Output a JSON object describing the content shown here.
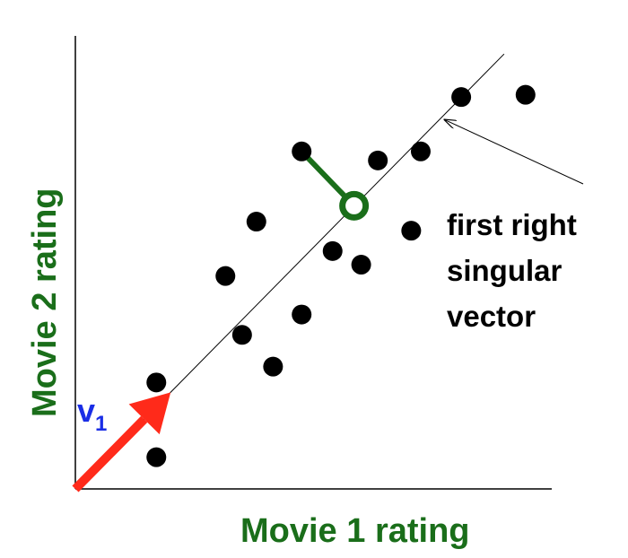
{
  "chart_data": {
    "type": "scatter",
    "title": "",
    "xlabel": "Movie 1 rating",
    "ylabel": "Movie 2 rating",
    "axis_color": "#000000",
    "label_color": "#1a6e1a",
    "point_color": "#000000",
    "grid": false,
    "ticks": false,
    "points": [
      {
        "x": 0.17,
        "y": 0.07
      },
      {
        "x": 0.17,
        "y": 0.235
      },
      {
        "x": 0.35,
        "y": 0.34
      },
      {
        "x": 0.415,
        "y": 0.27
      },
      {
        "x": 0.475,
        "y": 0.385
      },
      {
        "x": 0.315,
        "y": 0.47
      },
      {
        "x": 0.38,
        "y": 0.59
      },
      {
        "x": 0.54,
        "y": 0.525
      },
      {
        "x": 0.6,
        "y": 0.495
      },
      {
        "x": 0.705,
        "y": 0.57
      },
      {
        "x": 0.475,
        "y": 0.745
      },
      {
        "x": 0.635,
        "y": 0.725
      },
      {
        "x": 0.725,
        "y": 0.745
      },
      {
        "x": 0.81,
        "y": 0.865
      },
      {
        "x": 0.945,
        "y": 0.87
      }
    ],
    "fit_line": {
      "from": {
        "x": 0.0,
        "y": 0.0
      },
      "to": {
        "x": 0.9,
        "y": 0.96
      },
      "color": "#000000"
    },
    "projection": {
      "point": {
        "x": 0.475,
        "y": 0.745
      },
      "projected": {
        "x": 0.585,
        "y": 0.625
      },
      "color": "#1a6e1a"
    },
    "vector": {
      "label": "v",
      "subscript": "1",
      "from": {
        "x": 0.0,
        "y": 0.0
      },
      "to": {
        "x": 0.2,
        "y": 0.213
      },
      "color": "#ff2a1a",
      "label_color": "#1a2ee6"
    },
    "annotation": {
      "lines": [
        "first right",
        "singular",
        "vector"
      ],
      "arrow_tip": {
        "x": 0.775,
        "y": 0.815
      },
      "color": "#000000"
    }
  }
}
